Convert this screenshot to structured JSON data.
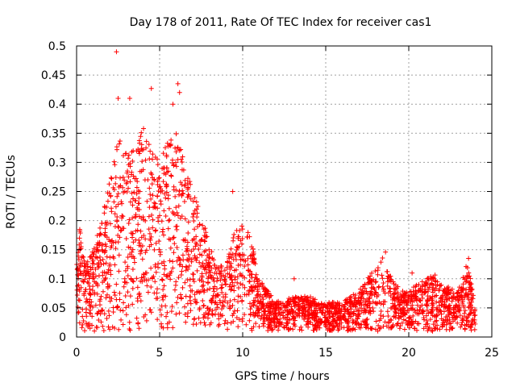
{
  "chart_data": {
    "type": "scatter",
    "title": "Day 178 of 2011, Rate Of TEC Index for receiver cas1",
    "xlabel": "GPS time / hours",
    "ylabel": "ROTI / TECUs",
    "xlim": [
      0,
      25
    ],
    "ylim": [
      0,
      0.5
    ],
    "x_ticks": [
      "0",
      "5",
      "10",
      "15",
      "20",
      "25"
    ],
    "y_ticks": [
      "0",
      "0.05",
      "0.1",
      "0.15",
      "0.2",
      "0.25",
      "0.3",
      "0.35",
      "0.4",
      "0.45",
      "0.5"
    ],
    "grid": true,
    "marker": "+",
    "color": "#ff0000",
    "envelope_description_hours": [
      {
        "x": 0.0,
        "ymax": 0.13
      },
      {
        "x": 0.2,
        "ymax": 0.2
      },
      {
        "x": 0.5,
        "ymax": 0.12
      },
      {
        "x": 1.0,
        "ymax": 0.15
      },
      {
        "x": 1.5,
        "ymax": 0.2
      },
      {
        "x": 2.0,
        "ymax": 0.27
      },
      {
        "x": 2.5,
        "ymax": 0.35
      },
      {
        "x": 3.0,
        "ymax": 0.33
      },
      {
        "x": 3.5,
        "ymax": 0.32
      },
      {
        "x": 4.0,
        "ymax": 0.36
      },
      {
        "x": 4.5,
        "ymax": 0.33
      },
      {
        "x": 5.0,
        "ymax": 0.3
      },
      {
        "x": 5.5,
        "ymax": 0.34
      },
      {
        "x": 6.0,
        "ymax": 0.35
      },
      {
        "x": 6.5,
        "ymax": 0.3
      },
      {
        "x": 7.0,
        "ymax": 0.25
      },
      {
        "x": 7.5,
        "ymax": 0.22
      },
      {
        "x": 8.0,
        "ymax": 0.16
      },
      {
        "x": 8.5,
        "ymax": 0.12
      },
      {
        "x": 9.0,
        "ymax": 0.13
      },
      {
        "x": 9.5,
        "ymax": 0.18
      },
      {
        "x": 10.0,
        "ymax": 0.2
      },
      {
        "x": 10.5,
        "ymax": 0.17
      },
      {
        "x": 11.0,
        "ymax": 0.1
      },
      {
        "x": 11.5,
        "ymax": 0.08
      },
      {
        "x": 12.0,
        "ymax": 0.06
      },
      {
        "x": 13.0,
        "ymax": 0.07
      },
      {
        "x": 14.0,
        "ymax": 0.07
      },
      {
        "x": 15.0,
        "ymax": 0.06
      },
      {
        "x": 16.0,
        "ymax": 0.06
      },
      {
        "x": 17.0,
        "ymax": 0.08
      },
      {
        "x": 18.0,
        "ymax": 0.12
      },
      {
        "x": 18.5,
        "ymax": 0.14
      },
      {
        "x": 19.0,
        "ymax": 0.1
      },
      {
        "x": 19.5,
        "ymax": 0.08
      },
      {
        "x": 20.0,
        "ymax": 0.08
      },
      {
        "x": 21.0,
        "ymax": 0.1
      },
      {
        "x": 21.5,
        "ymax": 0.11
      },
      {
        "x": 22.0,
        "ymax": 0.09
      },
      {
        "x": 23.0,
        "ymax": 0.08
      },
      {
        "x": 23.5,
        "ymax": 0.13
      },
      {
        "x": 24.0,
        "ymax": 0.06
      }
    ],
    "outliers": [
      {
        "x": 2.4,
        "y": 0.49
      },
      {
        "x": 2.5,
        "y": 0.41
      },
      {
        "x": 3.2,
        "y": 0.41
      },
      {
        "x": 4.5,
        "y": 0.427
      },
      {
        "x": 6.1,
        "y": 0.435
      },
      {
        "x": 6.2,
        "y": 0.42
      },
      {
        "x": 5.8,
        "y": 0.4
      },
      {
        "x": 9.4,
        "y": 0.25
      },
      {
        "x": 20.2,
        "y": 0.11
      },
      {
        "x": 18.6,
        "y": 0.146
      },
      {
        "x": 23.6,
        "y": 0.135
      },
      {
        "x": 13.1,
        "y": 0.1
      }
    ]
  }
}
